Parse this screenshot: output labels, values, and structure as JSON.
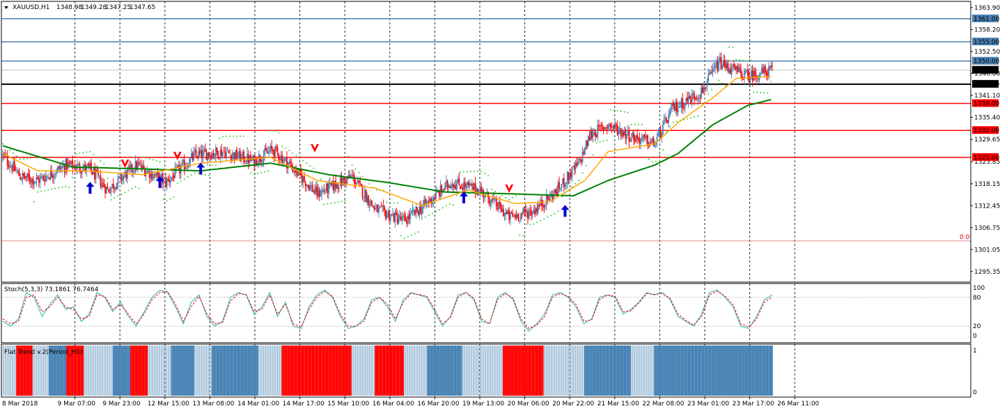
{
  "header": {
    "symbol": "XAUUSD,H1",
    "open": "1348.98",
    "high": "1349.28",
    "low": "1347.25",
    "close": "1347.65"
  },
  "colors": {
    "bull": "#4682b4",
    "bear": "#ff0000",
    "ma_fast": "#ffa500",
    "ma_slow": "#008000",
    "psar": "#32cd32",
    "line_blue": "#4a7fb0",
    "line_red": "#ff0000",
    "line_black": "#000000",
    "stoch_main": "#20b2aa",
    "stoch_signal": "#ff0000",
    "arrow_up": "#0000cd",
    "arrow_down": "#ff0000"
  },
  "chart_data": [
    {
      "type": "candlestick",
      "title": "XAUUSD,H1",
      "ylim": [
        1292.6,
        1365.5
      ],
      "y_ticks": [
        "1363.90",
        "1358.20",
        "1352.50",
        "1346.80",
        "1341.10",
        "1335.40",
        "1329.65",
        "1323.85",
        "1318.15",
        "1312.45",
        "1306.75",
        "1301.05",
        "1295.35"
      ],
      "x_ticks": [
        "8 Mar 2018",
        "9 Mar 07:00",
        "9 Mar 23:00",
        "12 Mar 15:00",
        "13 Mar 08:00",
        "14 Mar 01:00",
        "14 Mar 17:00",
        "15 Mar 10:00",
        "16 Mar 04:00",
        "16 Mar 20:00",
        "19 Mar 13:00",
        "20 Mar 06:00",
        "20 Mar 22:00",
        "21 Mar 15:00",
        "22 Mar 08:00",
        "23 Mar 01:00",
        "23 Mar 17:00",
        "26 Mar 11:00"
      ],
      "horizontal_levels": [
        {
          "value": 1361.0,
          "label": "1361.00",
          "color": "blue"
        },
        {
          "value": 1355.0,
          "label": "1355.00",
          "color": "blue"
        },
        {
          "value": 1350.0,
          "label": "1350.00",
          "color": "blue"
        },
        {
          "value": 1344.0,
          "label": "1344.00",
          "color": "black"
        },
        {
          "value": 1339.0,
          "label": "1339.00",
          "color": "red"
        },
        {
          "value": 1332.0,
          "label": "1332.00",
          "color": "red"
        },
        {
          "value": 1325.0,
          "label": "1325.00",
          "color": "red"
        }
      ],
      "current_price": {
        "value": 1347.65,
        "label": "1347.65"
      },
      "fib_label": "0.0",
      "fib_level": 1303.3,
      "key_points": [
        {
          "x": 0,
          "close": 1325.5
        },
        {
          "x": 15,
          "close": 1320.0
        },
        {
          "x": 30,
          "close": 1319.0
        },
        {
          "x": 55,
          "close": 1323.0
        },
        {
          "x": 75,
          "close": 1322.0
        },
        {
          "x": 90,
          "close": 1316.5
        },
        {
          "x": 115,
          "close": 1323.0
        },
        {
          "x": 140,
          "close": 1318.5
        },
        {
          "x": 165,
          "close": 1325.5
        },
        {
          "x": 190,
          "close": 1326.5
        },
        {
          "x": 215,
          "close": 1324.0
        },
        {
          "x": 232,
          "close": 1327.0
        },
        {
          "x": 245,
          "close": 1323.5
        },
        {
          "x": 270,
          "close": 1315.5
        },
        {
          "x": 300,
          "close": 1320.0
        },
        {
          "x": 320,
          "close": 1311.5
        },
        {
          "x": 345,
          "close": 1308.5
        },
        {
          "x": 360,
          "close": 1312.0
        },
        {
          "x": 385,
          "close": 1318.5
        },
        {
          "x": 410,
          "close": 1316.5
        },
        {
          "x": 435,
          "close": 1309.5
        },
        {
          "x": 455,
          "close": 1311.0
        },
        {
          "x": 475,
          "close": 1316.0
        },
        {
          "x": 495,
          "close": 1323.5
        },
        {
          "x": 505,
          "close": 1331.0
        },
        {
          "x": 520,
          "close": 1333.5
        },
        {
          "x": 540,
          "close": 1330.5
        },
        {
          "x": 560,
          "close": 1328.5
        },
        {
          "x": 575,
          "close": 1337.5
        },
        {
          "x": 600,
          "close": 1342.0
        },
        {
          "x": 615,
          "close": 1349.5
        },
        {
          "x": 640,
          "close": 1346.0
        },
        {
          "x": 660,
          "close": 1347.65
        }
      ],
      "ma_fast_points": [
        {
          "x": 0,
          "v": 1326.0
        },
        {
          "x": 30,
          "v": 1321.5
        },
        {
          "x": 70,
          "v": 1321.5
        },
        {
          "x": 120,
          "v": 1320.5
        },
        {
          "x": 170,
          "v": 1323.5
        },
        {
          "x": 230,
          "v": 1325.0
        },
        {
          "x": 270,
          "v": 1319.0
        },
        {
          "x": 320,
          "v": 1317.0
        },
        {
          "x": 360,
          "v": 1312.5
        },
        {
          "x": 400,
          "v": 1316.5
        },
        {
          "x": 440,
          "v": 1313.0
        },
        {
          "x": 470,
          "v": 1313.5
        },
        {
          "x": 500,
          "v": 1319.0
        },
        {
          "x": 520,
          "v": 1326.5
        },
        {
          "x": 560,
          "v": 1328.5
        },
        {
          "x": 580,
          "v": 1334.0
        },
        {
          "x": 610,
          "v": 1340.5
        },
        {
          "x": 630,
          "v": 1345.5
        },
        {
          "x": 660,
          "v": 1346.0
        }
      ],
      "ma_slow_points": [
        {
          "x": 0,
          "v": 1328.0
        },
        {
          "x": 60,
          "v": 1322.5
        },
        {
          "x": 120,
          "v": 1322.0
        },
        {
          "x": 170,
          "v": 1321.5
        },
        {
          "x": 230,
          "v": 1323.5
        },
        {
          "x": 280,
          "v": 1320.5
        },
        {
          "x": 330,
          "v": 1318.5
        },
        {
          "x": 380,
          "v": 1316.0
        },
        {
          "x": 440,
          "v": 1315.5
        },
        {
          "x": 490,
          "v": 1315.0
        },
        {
          "x": 520,
          "v": 1319.0
        },
        {
          "x": 560,
          "v": 1323.0
        },
        {
          "x": 580,
          "v": 1326.0
        },
        {
          "x": 610,
          "v": 1333.5
        },
        {
          "x": 640,
          "v": 1338.5
        },
        {
          "x": 660,
          "v": 1340.0
        }
      ],
      "signals": [
        {
          "x": 75,
          "dir": "up",
          "price": 1317.0
        },
        {
          "x": 105,
          "dir": "down",
          "price": 1323.0
        },
        {
          "x": 135,
          "dir": "up",
          "price": 1318.5
        },
        {
          "x": 150,
          "dir": "down",
          "price": 1325.0
        },
        {
          "x": 170,
          "dir": "up",
          "price": 1322.0
        },
        {
          "x": 268,
          "dir": "down",
          "price": 1327.0
        },
        {
          "x": 396,
          "dir": "up",
          "price": 1314.5
        },
        {
          "x": 435,
          "dir": "down",
          "price": 1316.5
        },
        {
          "x": 483,
          "dir": "up",
          "price": 1311.0
        }
      ]
    },
    {
      "type": "line",
      "title": "Stoch(5,3,3) 73.1861 76.7464",
      "ylim": [
        0,
        100
      ],
      "y_ticks": [
        "100",
        "80",
        "20",
        "0"
      ],
      "series": [
        {
          "name": "main",
          "values": [
            30,
            20,
            35,
            90,
            80,
            40,
            65,
            85,
            55,
            60,
            30,
            45,
            90,
            80,
            50,
            70,
            40,
            20,
            50,
            80,
            95,
            90,
            60,
            25,
            70,
            85,
            40,
            20,
            30,
            80,
            90,
            85,
            45,
            60,
            90,
            40,
            70,
            20,
            15,
            60,
            85,
            95,
            80,
            40,
            15,
            20,
            35,
            75,
            80,
            60,
            30,
            75,
            90,
            85,
            80,
            50,
            20,
            40,
            85,
            90,
            75,
            30,
            25,
            80,
            90,
            75,
            30,
            10,
            25,
            45,
            85,
            90,
            80,
            60,
            25,
            35,
            80,
            85,
            80,
            45,
            55,
            70,
            90,
            85,
            90,
            75,
            40,
            30,
            20,
            45,
            90,
            95,
            80,
            60,
            20,
            15,
            40,
            75,
            85
          ]
        },
        {
          "name": "signal",
          "values": [
            35,
            25,
            30,
            80,
            85,
            50,
            60,
            80,
            60,
            55,
            35,
            40,
            85,
            82,
            55,
            65,
            45,
            25,
            45,
            75,
            90,
            92,
            65,
            30,
            60,
            82,
            45,
            25,
            28,
            72,
            88,
            86,
            50,
            55,
            85,
            45,
            65,
            25,
            18,
            55,
            80,
            92,
            82,
            45,
            20,
            20,
            30,
            70,
            80,
            65,
            35,
            70,
            88,
            86,
            82,
            55,
            25,
            38,
            80,
            90,
            78,
            35,
            25,
            75,
            88,
            78,
            35,
            15,
            22,
            40,
            80,
            88,
            82,
            65,
            30,
            33,
            75,
            85,
            82,
            50,
            52,
            68,
            88,
            86,
            88,
            78,
            45,
            32,
            22,
            40,
            85,
            93,
            82,
            65,
            25,
            18,
            35,
            70,
            80
          ]
        }
      ]
    },
    {
      "type": "bar",
      "title": "Flat Trend v.2(Period_H1)",
      "ylim": [
        0,
        1
      ],
      "y_ticks": [
        "1",
        "0"
      ],
      "segments": [
        {
          "from": 0,
          "to": 12,
          "state": "bull_light"
        },
        {
          "from": 12,
          "to": 26,
          "state": "bear"
        },
        {
          "from": 26,
          "to": 40,
          "state": "bull_light"
        },
        {
          "from": 40,
          "to": 55,
          "state": "bull"
        },
        {
          "from": 55,
          "to": 70,
          "state": "bear"
        },
        {
          "from": 70,
          "to": 95,
          "state": "bull_light"
        },
        {
          "from": 95,
          "to": 110,
          "state": "bull"
        },
        {
          "from": 110,
          "to": 125,
          "state": "bear"
        },
        {
          "from": 125,
          "to": 145,
          "state": "bull_light"
        },
        {
          "from": 145,
          "to": 165,
          "state": "bull"
        },
        {
          "from": 165,
          "to": 180,
          "state": "bull_light"
        },
        {
          "from": 180,
          "to": 220,
          "state": "bull"
        },
        {
          "from": 220,
          "to": 240,
          "state": "bull_light"
        },
        {
          "from": 240,
          "to": 300,
          "state": "bear"
        },
        {
          "from": 300,
          "to": 320,
          "state": "bull_light"
        },
        {
          "from": 320,
          "to": 345,
          "state": "bear"
        },
        {
          "from": 345,
          "to": 365,
          "state": "bull_light"
        },
        {
          "from": 365,
          "to": 395,
          "state": "bull"
        },
        {
          "from": 395,
          "to": 430,
          "state": "bull_light"
        },
        {
          "from": 430,
          "to": 465,
          "state": "bear"
        },
        {
          "from": 465,
          "to": 500,
          "state": "bull_light"
        },
        {
          "from": 500,
          "to": 540,
          "state": "bull"
        },
        {
          "from": 540,
          "to": 560,
          "state": "bull_light"
        },
        {
          "from": 560,
          "to": 662,
          "state": "bull"
        }
      ]
    }
  ]
}
